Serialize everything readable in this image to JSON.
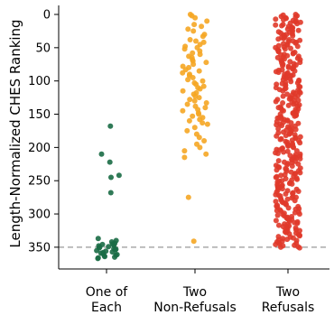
{
  "chart_data": {
    "type": "scatter",
    "ylabel": "Length-Normalized CHES Ranking",
    "xlabel": "",
    "ylim": [
      0,
      380
    ],
    "yticks": [
      0,
      50,
      100,
      150,
      200,
      250,
      300,
      350
    ],
    "y_inverted": true,
    "reference_line": {
      "y": 350,
      "style": "dashed",
      "color": "#aaaaaa"
    },
    "categories": [
      [
        "One of",
        "Each"
      ],
      [
        "Two",
        "Non-Refusals"
      ],
      [
        "Two",
        "Refusals"
      ]
    ],
    "series": [
      {
        "color": "#1a6b45",
        "values": [
          168,
          210,
          222,
          242,
          245,
          268,
          337,
          340,
          342,
          344,
          345,
          346,
          347,
          348,
          349,
          350,
          351,
          352,
          353,
          354,
          355,
          356,
          357,
          358,
          359,
          360,
          361,
          362,
          363,
          364,
          365,
          366,
          367
        ]
      },
      {
        "color": "#f5a623",
        "values": [
          0,
          2,
          5,
          10,
          15,
          18,
          22,
          25,
          30,
          33,
          38,
          40,
          42,
          45,
          48,
          50,
          52,
          55,
          58,
          60,
          63,
          65,
          68,
          70,
          72,
          75,
          78,
          80,
          83,
          85,
          88,
          90,
          92,
          95,
          98,
          100,
          103,
          105,
          108,
          110,
          112,
          115,
          118,
          120,
          123,
          125,
          128,
          130,
          133,
          135,
          138,
          140,
          143,
          145,
          148,
          150,
          153,
          155,
          158,
          160,
          163,
          165,
          170,
          175,
          180,
          185,
          190,
          195,
          200,
          205,
          210,
          215,
          275,
          341
        ]
      },
      {
        "color": "#e03a2a",
        "values": [
          0,
          1,
          2,
          3,
          4,
          5,
          6,
          7,
          8,
          9,
          10,
          11,
          12,
          13,
          14,
          15,
          16,
          17,
          18,
          19,
          20,
          21,
          22,
          23,
          24,
          25,
          26,
          27,
          28,
          29,
          30,
          31,
          32,
          33,
          34,
          35,
          36,
          37,
          38,
          39,
          40,
          41,
          42,
          43,
          44,
          45,
          46,
          47,
          48,
          49,
          50,
          51,
          52,
          53,
          54,
          55,
          56,
          57,
          58,
          59,
          60,
          61,
          62,
          63,
          64,
          65,
          66,
          67,
          68,
          69,
          70,
          71,
          72,
          73,
          74,
          75,
          76,
          77,
          78,
          79,
          80,
          81,
          82,
          83,
          84,
          85,
          86,
          87,
          88,
          89,
          90,
          91,
          92,
          93,
          94,
          95,
          96,
          97,
          98,
          99,
          100,
          101,
          102,
          103,
          104,
          105,
          106,
          107,
          108,
          109,
          110,
          111,
          112,
          113,
          114,
          115,
          116,
          117,
          118,
          119,
          120,
          121,
          122,
          123,
          124,
          125,
          126,
          127,
          128,
          129,
          130,
          131,
          132,
          133,
          134,
          135,
          136,
          137,
          138,
          139,
          140,
          141,
          142,
          143,
          144,
          145,
          146,
          147,
          148,
          149,
          150,
          151,
          152,
          153,
          154,
          155,
          156,
          157,
          158,
          159,
          160,
          161,
          162,
          163,
          164,
          165,
          166,
          167,
          168,
          169,
          170,
          171,
          172,
          173,
          174,
          175,
          176,
          177,
          178,
          179,
          180,
          181,
          182,
          183,
          184,
          185,
          186,
          187,
          188,
          189,
          190,
          191,
          192,
          193,
          194,
          195,
          196,
          197,
          198,
          199,
          200,
          201,
          202,
          203,
          204,
          205,
          206,
          207,
          208,
          209,
          210,
          211,
          212,
          213,
          214,
          215,
          216,
          217,
          218,
          219,
          220,
          221,
          222,
          223,
          224,
          225,
          226,
          227,
          228,
          229,
          230,
          231,
          232,
          233,
          234,
          235,
          236,
          237,
          238,
          239,
          240,
          241,
          242,
          243,
          244,
          245,
          246,
          247,
          248,
          249,
          250,
          251,
          252,
          253,
          254,
          255,
          256,
          257,
          258,
          259,
          260,
          261,
          262,
          263,
          264,
          265,
          266,
          267,
          268,
          269,
          270,
          271,
          272,
          273,
          274,
          275,
          276,
          277,
          278,
          279,
          280,
          281,
          282,
          283,
          284,
          285,
          286,
          287,
          288,
          289,
          290,
          291,
          292,
          293,
          294,
          295,
          296,
          297,
          298,
          299,
          300,
          301,
          302,
          303,
          304,
          305,
          306,
          307,
          308,
          309,
          310,
          311,
          312,
          313,
          314,
          315,
          316,
          317,
          318,
          319,
          320,
          321,
          322,
          323,
          324,
          325,
          326,
          327,
          328,
          329,
          330,
          331,
          332,
          333,
          334,
          335,
          336,
          337,
          338,
          339,
          340,
          341,
          342,
          343,
          344,
          345,
          346,
          347,
          348,
          349,
          350,
          351
        ]
      }
    ],
    "grid": false,
    "legend": "none"
  }
}
